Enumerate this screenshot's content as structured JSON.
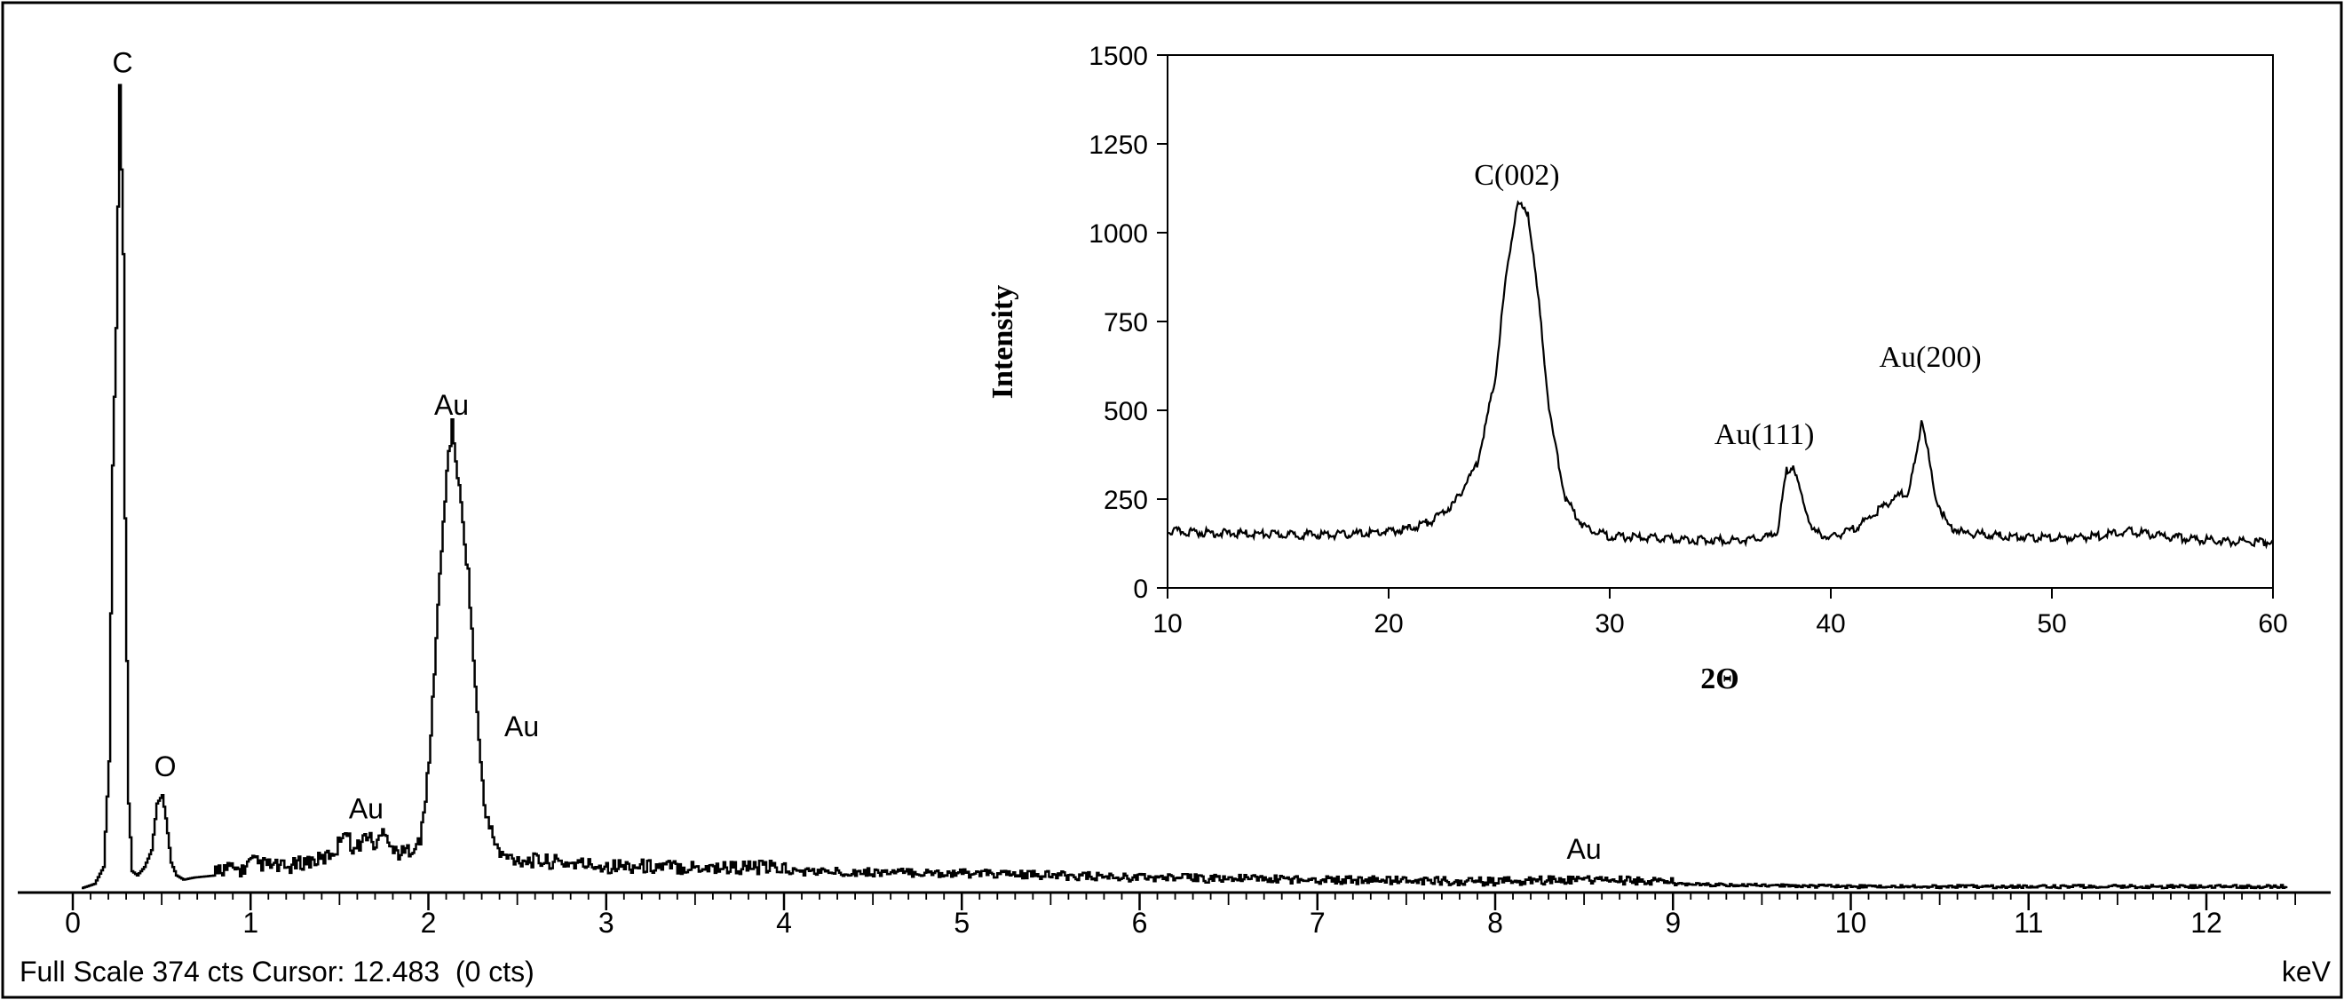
{
  "eds": {
    "footer_text": "Full Scale 374 cts Cursor: 12.483  (0 cts)",
    "x_unit": "keV",
    "full_scale_cts": 374,
    "cursor_keV": 12.483,
    "cursor_cts": 0
  },
  "colors": {
    "line": "#000000",
    "background": "#ffffff"
  },
  "chart_data": [
    {
      "type": "line",
      "chart": "eds_spectrum",
      "xlabel": "keV",
      "ylabel": "",
      "xlim": [
        -0.3,
        12.5
      ],
      "ylim": [
        0,
        374
      ],
      "xticks": [
        0,
        1,
        2,
        3,
        4,
        5,
        6,
        7,
        8,
        9,
        10,
        11,
        12
      ],
      "grid": false,
      "series": [
        {
          "x": [
            0.05,
            0.12,
            0.17,
            0.2,
            0.22,
            0.24,
            0.26,
            0.28,
            0.29,
            0.31,
            0.33,
            0.36,
            0.4,
            0.44,
            0.47,
            0.5,
            0.52,
            0.55,
            0.58,
            0.62,
            0.68,
            0.8,
            0.95,
            1.0,
            1.05,
            1.2,
            1.3,
            1.4,
            1.48,
            1.52,
            1.58,
            1.65,
            1.7,
            1.75,
            1.8,
            1.85,
            1.95,
            2.0,
            2.05,
            2.1,
            2.13,
            2.17,
            2.22,
            2.28,
            2.32,
            2.4,
            2.5,
            3.0,
            4.0,
            5.0,
            6.0,
            7.0,
            8.0,
            8.4,
            9.0,
            10.0,
            11.0,
            12.0,
            12.5
          ],
          "y": [
            0,
            2,
            10,
            60,
            200,
            265,
            380,
            300,
            175,
            40,
            8,
            6,
            10,
            18,
            40,
            44,
            33,
            12,
            6,
            4,
            5,
            6,
            5,
            9,
            8,
            6,
            9,
            10,
            15,
            25,
            14,
            22,
            16,
            25,
            14,
            13,
            18,
            55,
            130,
            195,
            215,
            185,
            145,
            65,
            30,
            12,
            10,
            7,
            6,
            5,
            3,
            2,
            1,
            2,
            1,
            0,
            0,
            0,
            0
          ]
        }
      ],
      "annotations": [
        {
          "text": "C",
          "x": 0.28,
          "y": 380
        },
        {
          "text": "O",
          "x": 0.52,
          "y": 47
        },
        {
          "text": "Au",
          "x": 1.65,
          "y": 27
        },
        {
          "text": "Au",
          "x": 2.13,
          "y": 218
        },
        {
          "text": "Au",
          "x": 2.4,
          "y": 66
        },
        {
          "text": "Au",
          "x": 8.5,
          "y": 8
        }
      ]
    },
    {
      "type": "line",
      "chart": "xrd_inset",
      "xlabel": "2Θ",
      "ylabel": "Intensity",
      "xlim": [
        10,
        60
      ],
      "ylim": [
        0,
        1500
      ],
      "xticks": [
        10,
        20,
        30,
        40,
        50,
        60
      ],
      "yticks": [
        0,
        250,
        500,
        750,
        1000,
        1250,
        1500
      ],
      "grid": false,
      "series": [
        {
          "x": [
            10,
            12,
            15,
            18,
            20,
            21,
            22,
            23,
            24,
            24.8,
            25.3,
            25.8,
            26.3,
            26.8,
            27.3,
            28,
            28.8,
            30,
            32,
            34,
            36,
            37,
            37.6,
            38.0,
            38.3,
            38.7,
            39.2,
            40,
            41,
            41.8,
            42.5,
            43.0,
            43.5,
            43.9,
            44.1,
            44.3,
            44.7,
            45.3,
            46,
            48,
            50,
            52,
            53.5,
            55,
            58,
            60
          ],
          "y": [
            160,
            155,
            150,
            150,
            158,
            168,
            190,
            240,
            350,
            580,
            870,
            1080,
            1060,
            800,
            480,
            250,
            175,
            145,
            140,
            135,
            135,
            140,
            160,
            330,
            345,
            250,
            160,
            140,
            165,
            200,
            235,
            260,
            265,
            380,
            480,
            420,
            260,
            175,
            155,
            145,
            140,
            145,
            160,
            145,
            130,
            130
          ]
        }
      ],
      "annotations": [
        {
          "text": "C(002)",
          "x": 25.8,
          "y": 1090
        },
        {
          "text": "Au(111)",
          "x": 38.2,
          "y": 360
        },
        {
          "text": "Au(200)",
          "x": 44.1,
          "y": 490
        }
      ]
    }
  ]
}
